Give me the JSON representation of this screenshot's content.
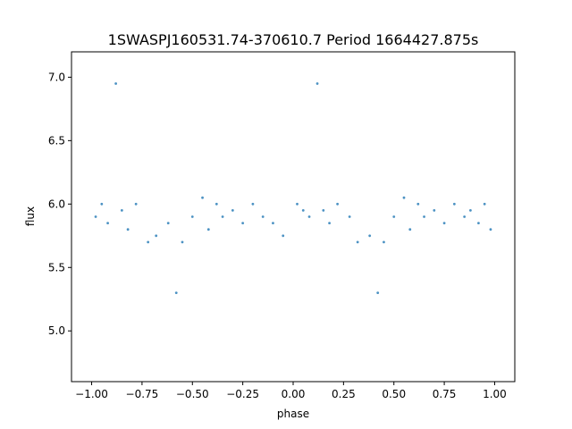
{
  "chart_data": {
    "type": "scatter",
    "title": "1SWASPJ160531.74-370610.7 Period 1664427.875s",
    "xlabel": "phase",
    "ylabel": "flux",
    "xlim": [
      -1.1,
      1.1
    ],
    "ylim": [
      4.6,
      7.2
    ],
    "xticks": [
      -1.0,
      -0.75,
      -0.5,
      -0.25,
      0.0,
      0.25,
      0.5,
      0.75,
      1.0
    ],
    "xtick_labels": [
      "−1.00",
      "−0.75",
      "−0.50",
      "−0.25",
      "0.00",
      "0.25",
      "0.50",
      "0.75",
      "1.00"
    ],
    "yticks": [
      5.0,
      5.5,
      6.0,
      6.5,
      7.0
    ],
    "ytick_labels": [
      "5.0",
      "5.5",
      "6.0",
      "6.5",
      "7.0"
    ],
    "grid": false,
    "point_color": "#1f77b4",
    "series": [
      {
        "x": [
          -0.98,
          -0.95,
          -0.92,
          -0.88,
          -0.85,
          -0.82,
          -0.78,
          -0.72,
          -0.68,
          -0.62,
          -0.58,
          -0.55,
          -0.5,
          -0.45,
          -0.42,
          -0.38,
          -0.35,
          -0.3,
          -0.25,
          -0.2,
          -0.15,
          -0.1,
          -0.05,
          0.02,
          0.05,
          0.08,
          0.12,
          0.15,
          0.18,
          0.22,
          0.28,
          0.32,
          0.38,
          0.42,
          0.45,
          0.5,
          0.55,
          0.58,
          0.62,
          0.65,
          0.7,
          0.75,
          0.8,
          0.85,
          0.88,
          0.92,
          0.95,
          0.98
        ],
        "y": [
          5.9,
          6.0,
          5.85,
          6.95,
          5.95,
          5.8,
          6.0,
          5.7,
          5.75,
          5.85,
          5.3,
          5.7,
          5.9,
          6.05,
          5.8,
          6.0,
          5.9,
          5.95,
          5.85,
          6.0,
          5.9,
          5.85,
          5.75,
          6.0,
          5.95,
          5.9,
          6.95,
          5.95,
          5.85,
          6.0,
          5.9,
          5.7,
          5.75,
          5.3,
          5.7,
          5.9,
          6.05,
          5.8,
          6.0,
          5.9,
          5.95,
          5.85,
          6.0,
          5.9,
          5.95,
          5.85,
          6.0,
          5.8
        ]
      }
    ]
  }
}
